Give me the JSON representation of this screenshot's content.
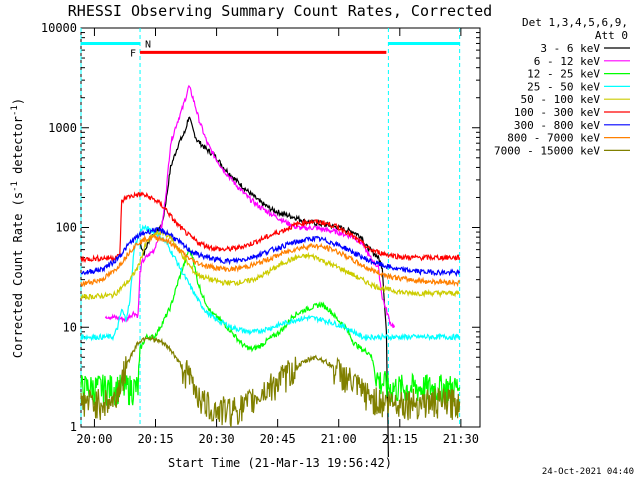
{
  "chart_data": {
    "type": "line",
    "title": "RHESSI Observing Summary Count Rates, Corrected",
    "xlabel": "Start Time (21-Mar-13 19:56:42)",
    "ylabel": "Corrected Count Rate (s^-1 detector^-1)",
    "ylabel_parts": {
      "main": "Corrected Count Rate (s",
      "sup1": "-1",
      "mid": " detector",
      "sup2": "-1",
      "end": ")"
    },
    "y_scale": "log",
    "ylim": [
      1,
      10000
    ],
    "y_ticks": [
      "1",
      "10",
      "100",
      "1000",
      "10000"
    ],
    "x_range_minutes": [
      0,
      98
    ],
    "x_ticks": [
      {
        "t": 3.3,
        "label": "20:00"
      },
      {
        "t": 18.3,
        "label": "20:15"
      },
      {
        "t": 33.3,
        "label": "20:30"
      },
      {
        "t": 48.3,
        "label": "20:45"
      },
      {
        "t": 63.3,
        "label": "21:00"
      },
      {
        "t": 78.3,
        "label": "21:15"
      },
      {
        "t": 93.3,
        "label": "21:30"
      }
    ],
    "legend_header": [
      "Det 1,3,4,5,6,9,",
      "Att 0"
    ],
    "footer_date": "24-Oct-2021 04:40",
    "flags": {
      "night_label": "N",
      "flare_label": "F",
      "night_spans": [
        [
          0,
          14.5
        ],
        [
          75.5,
          93
        ]
      ],
      "flare_span": [
        14.5,
        75
      ],
      "night_level": 7000,
      "flare_level": 5700,
      "night_boundaries": [
        0,
        14.5,
        75.5,
        93
      ],
      "colors": {
        "night": "#00ffff",
        "flare": "#ff0000"
      }
    },
    "series": [
      {
        "name": "3 - 6 keV",
        "color": "#000000",
        "points": [
          [
            14.5,
            70
          ],
          [
            15.5,
            55
          ],
          [
            17,
            80
          ],
          [
            19,
            95
          ],
          [
            20,
            110
          ],
          [
            21,
            200
          ],
          [
            22,
            400
          ],
          [
            24,
            700
          ],
          [
            25.5,
            900
          ],
          [
            26.5,
            1300
          ],
          [
            27.5,
            950
          ],
          [
            28.5,
            750
          ],
          [
            31,
            600
          ],
          [
            33,
            520
          ],
          [
            35,
            400
          ],
          [
            38,
            300
          ],
          [
            41,
            230
          ],
          [
            44,
            180
          ],
          [
            47,
            150
          ],
          [
            50,
            135
          ],
          [
            53,
            125
          ],
          [
            55,
            115
          ],
          [
            58,
            110
          ],
          [
            61,
            105
          ],
          [
            63,
            100
          ],
          [
            65,
            95
          ],
          [
            67,
            90
          ],
          [
            69,
            80
          ],
          [
            70,
            65
          ],
          [
            71,
            60
          ],
          [
            72,
            55
          ],
          [
            73,
            50
          ],
          [
            74,
            40
          ],
          [
            75,
            9
          ],
          [
            75.5,
            0
          ]
        ]
      },
      {
        "name": "6 - 12 keV",
        "color": "#ff00ff",
        "points": [
          [
            6,
            13
          ],
          [
            11,
            12
          ],
          [
            13,
            14
          ],
          [
            14,
            13
          ],
          [
            14.5,
            35
          ],
          [
            15,
            45
          ],
          [
            16,
            50
          ],
          [
            18,
            60
          ],
          [
            20,
            110
          ],
          [
            21,
            250
          ],
          [
            22,
            700
          ],
          [
            23.5,
            1100
          ],
          [
            25,
            1600
          ],
          [
            26.5,
            2600
          ],
          [
            27.5,
            2000
          ],
          [
            29,
            1200
          ],
          [
            31,
            700
          ],
          [
            33,
            500
          ],
          [
            35,
            380
          ],
          [
            38,
            270
          ],
          [
            41,
            200
          ],
          [
            44,
            160
          ],
          [
            47,
            135
          ],
          [
            50,
            115
          ],
          [
            53,
            100
          ],
          [
            55,
            98
          ],
          [
            57,
            100
          ],
          [
            60,
            95
          ],
          [
            63,
            90
          ],
          [
            65,
            85
          ],
          [
            67,
            80
          ],
          [
            69,
            70
          ],
          [
            71,
            50
          ],
          [
            73,
            40
          ],
          [
            74,
            20
          ],
          [
            76,
            11
          ],
          [
            77,
            10
          ]
        ]
      },
      {
        "name": "12 - 25 keV",
        "color": "#00ff00",
        "points": [
          [
            0,
            2.5
          ],
          [
            14,
            2.5
          ],
          [
            14.5,
            6
          ],
          [
            16,
            8
          ],
          [
            18,
            8
          ],
          [
            20,
            11
          ],
          [
            22,
            16
          ],
          [
            24,
            30
          ],
          [
            25.5,
            45
          ],
          [
            26.5,
            60
          ],
          [
            27.5,
            50
          ],
          [
            28.5,
            30
          ],
          [
            30,
            20
          ],
          [
            32,
            14
          ],
          [
            34,
            12
          ],
          [
            36,
            10
          ],
          [
            38,
            8
          ],
          [
            40,
            6.5
          ],
          [
            42,
            6
          ],
          [
            44,
            6.5
          ],
          [
            46,
            7.5
          ],
          [
            48,
            8.5
          ],
          [
            50,
            10
          ],
          [
            52,
            13
          ],
          [
            55,
            15
          ],
          [
            57,
            16
          ],
          [
            59,
            17
          ],
          [
            61,
            15
          ],
          [
            63,
            12
          ],
          [
            65,
            10
          ],
          [
            67,
            7
          ],
          [
            69,
            6
          ],
          [
            71,
            5.5
          ],
          [
            73,
            3
          ],
          [
            76,
            2.5
          ],
          [
            93,
            2.5
          ]
        ]
      },
      {
        "name": "25 - 50 keV",
        "color": "#00ffff",
        "points": [
          [
            0,
            8
          ],
          [
            8,
            8
          ],
          [
            9,
            10
          ],
          [
            10,
            15
          ],
          [
            11,
            12
          ],
          [
            12,
            18
          ],
          [
            13,
            60
          ],
          [
            14,
            80
          ],
          [
            15,
            100
          ],
          [
            17,
            95
          ],
          [
            19,
            85
          ],
          [
            21,
            70
          ],
          [
            23,
            50
          ],
          [
            25,
            35
          ],
          [
            27,
            25
          ],
          [
            29,
            18
          ],
          [
            31,
            14
          ],
          [
            33,
            12
          ],
          [
            35,
            11
          ],
          [
            37,
            10
          ],
          [
            39,
            9.5
          ],
          [
            41,
            9
          ],
          [
            43,
            9
          ],
          [
            45,
            9.5
          ],
          [
            47,
            10
          ],
          [
            50,
            11
          ],
          [
            53,
            12
          ],
          [
            56,
            12.5
          ],
          [
            59,
            12
          ],
          [
            62,
            11
          ],
          [
            65,
            10
          ],
          [
            67,
            9
          ],
          [
            69,
            8
          ],
          [
            71,
            8
          ],
          [
            73,
            8
          ],
          [
            93,
            8
          ]
        ]
      },
      {
        "name": "50 - 100 keV",
        "color": "#cccc00",
        "points": [
          [
            0,
            20
          ],
          [
            8,
            21
          ],
          [
            10,
            25
          ],
          [
            12,
            30
          ],
          [
            14,
            40
          ],
          [
            16,
            70
          ],
          [
            18,
            85
          ],
          [
            20,
            90
          ],
          [
            22,
            80
          ],
          [
            24,
            60
          ],
          [
            26,
            45
          ],
          [
            28,
            35
          ],
          [
            30,
            32
          ],
          [
            32,
            30
          ],
          [
            35,
            28
          ],
          [
            38,
            28
          ],
          [
            41,
            29
          ],
          [
            44,
            32
          ],
          [
            47,
            38
          ],
          [
            50,
            45
          ],
          [
            53,
            50
          ],
          [
            56,
            52
          ],
          [
            58,
            50
          ],
          [
            60,
            45
          ],
          [
            63,
            40
          ],
          [
            66,
            35
          ],
          [
            69,
            30
          ],
          [
            72,
            26
          ],
          [
            75,
            24
          ],
          [
            80,
            22
          ],
          [
            93,
            22
          ]
        ]
      },
      {
        "name": "100 - 300 keV",
        "color": "#ff0000",
        "points": [
          [
            0,
            48
          ],
          [
            8,
            50
          ],
          [
            9.5,
            52
          ],
          [
            10,
            180
          ],
          [
            11,
            200
          ],
          [
            13,
            210
          ],
          [
            15,
            215
          ],
          [
            17,
            200
          ],
          [
            19,
            180
          ],
          [
            21,
            150
          ],
          [
            23,
            115
          ],
          [
            25,
            95
          ],
          [
            27,
            80
          ],
          [
            29,
            70
          ],
          [
            32,
            63
          ],
          [
            35,
            60
          ],
          [
            38,
            62
          ],
          [
            41,
            67
          ],
          [
            44,
            75
          ],
          [
            47,
            85
          ],
          [
            50,
            95
          ],
          [
            53,
            108
          ],
          [
            56,
            115
          ],
          [
            59,
            113
          ],
          [
            62,
            105
          ],
          [
            65,
            92
          ],
          [
            68,
            75
          ],
          [
            71,
            60
          ],
          [
            74,
            55
          ],
          [
            77,
            52
          ],
          [
            80,
            50
          ],
          [
            93,
            50
          ]
        ]
      },
      {
        "name": "300 - 800 keV",
        "color": "#0000ff",
        "points": [
          [
            0,
            35
          ],
          [
            5,
            38
          ],
          [
            8,
            45
          ],
          [
            10,
            55
          ],
          [
            12,
            70
          ],
          [
            14,
            82
          ],
          [
            16,
            90
          ],
          [
            18,
            95
          ],
          [
            20,
            92
          ],
          [
            22,
            85
          ],
          [
            24,
            72
          ],
          [
            26,
            62
          ],
          [
            28,
            55
          ],
          [
            31,
            50
          ],
          [
            34,
            47
          ],
          [
            37,
            46
          ],
          [
            40,
            48
          ],
          [
            43,
            52
          ],
          [
            46,
            58
          ],
          [
            49,
            64
          ],
          [
            52,
            70
          ],
          [
            55,
            75
          ],
          [
            57,
            78
          ],
          [
            59,
            76
          ],
          [
            62,
            70
          ],
          [
            65,
            62
          ],
          [
            68,
            53
          ],
          [
            71,
            46
          ],
          [
            74,
            42
          ],
          [
            78,
            38
          ],
          [
            84,
            36
          ],
          [
            93,
            35
          ]
        ]
      },
      {
        "name": "800 - 7000 keV",
        "color": "#ff8000",
        "points": [
          [
            0,
            27
          ],
          [
            5,
            30
          ],
          [
            8,
            36
          ],
          [
            10,
            45
          ],
          [
            12,
            58
          ],
          [
            14,
            70
          ],
          [
            16,
            77
          ],
          [
            18,
            80
          ],
          [
            20,
            77
          ],
          [
            22,
            70
          ],
          [
            24,
            60
          ],
          [
            26,
            51
          ],
          [
            28,
            45
          ],
          [
            31,
            41
          ],
          [
            34,
            39
          ],
          [
            37,
            38
          ],
          [
            40,
            40
          ],
          [
            43,
            43
          ],
          [
            46,
            48
          ],
          [
            49,
            54
          ],
          [
            52,
            60
          ],
          [
            55,
            64
          ],
          [
            57,
            66
          ],
          [
            59,
            64
          ],
          [
            62,
            60
          ],
          [
            65,
            52
          ],
          [
            68,
            44
          ],
          [
            71,
            38
          ],
          [
            74,
            34
          ],
          [
            78,
            31
          ],
          [
            84,
            29
          ],
          [
            93,
            28
          ]
        ]
      },
      {
        "name": "7000 - 15000 keV",
        "color": "#808000",
        "points": [
          [
            0,
            1.8
          ],
          [
            8,
            1.8
          ],
          [
            10,
            3
          ],
          [
            12,
            5
          ],
          [
            14,
            7
          ],
          [
            16,
            8
          ],
          [
            18,
            7.5
          ],
          [
            20,
            7
          ],
          [
            22,
            6
          ],
          [
            24,
            4.5
          ],
          [
            26,
            3.5
          ],
          [
            28,
            2.5
          ],
          [
            30,
            1.8
          ],
          [
            33,
            1.5
          ],
          [
            36,
            1.5
          ],
          [
            40,
            1.6
          ],
          [
            43,
            2
          ],
          [
            46,
            2.5
          ],
          [
            49,
            3
          ],
          [
            52,
            3.8
          ],
          [
            55,
            4.5
          ],
          [
            57,
            5
          ],
          [
            59,
            4.8
          ],
          [
            62,
            4
          ],
          [
            65,
            3.2
          ],
          [
            68,
            2.5
          ],
          [
            71,
            2
          ],
          [
            74,
            1.8
          ],
          [
            80,
            1.8
          ],
          [
            93,
            1.8
          ]
        ]
      }
    ]
  }
}
